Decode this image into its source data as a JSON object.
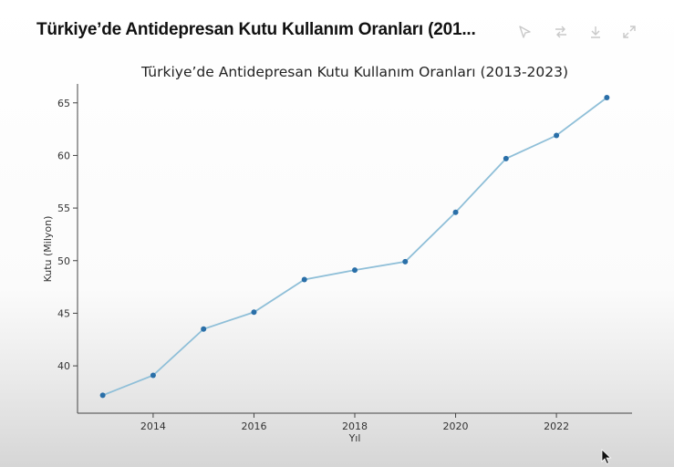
{
  "header": {
    "title": "Türkiye’de Antidepresan Kutu Kullanım Oranları (201...",
    "icons": [
      "chart-style-icon",
      "switch-icon",
      "download-icon",
      "expand-icon"
    ]
  },
  "chart_data": {
    "type": "line",
    "title": "Türkiye’de Antidepresan Kutu Kullanım Oranları (2013-2023)",
    "xlabel": "Yıl",
    "ylabel": "Kutu (Milyon)",
    "x": [
      2013,
      2014,
      2015,
      2016,
      2017,
      2018,
      2019,
      2020,
      2021,
      2022,
      2023
    ],
    "series": [
      {
        "values": [
          37.2,
          39.1,
          43.5,
          45.1,
          48.2,
          49.1,
          49.9,
          54.6,
          59.7,
          61.9,
          65.5
        ]
      }
    ],
    "xticks": [
      2014,
      2016,
      2018,
      2020,
      2022
    ],
    "yticks": [
      40,
      45,
      50,
      55,
      60,
      65
    ],
    "xlim": [
      2012.5,
      2023.5
    ],
    "ylim": [
      35.5,
      66.8
    ],
    "grid": false,
    "line_color": "#8fbfd8",
    "marker_color": "#2a6fa8"
  }
}
